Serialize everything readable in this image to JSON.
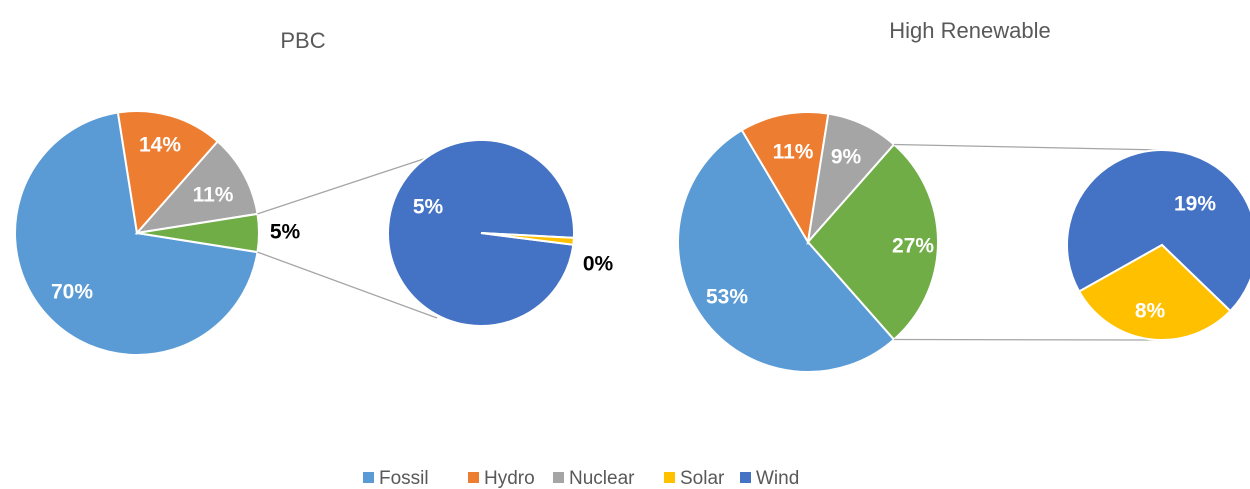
{
  "chart_data": [
    {
      "type": "pie-of-pie",
      "title": "PBC",
      "main": {
        "categories": [
          "Fossil",
          "Hydro",
          "Nuclear",
          null
        ],
        "values": [
          70,
          14,
          11,
          5
        ],
        "value_labels": [
          "70%",
          "14%",
          "11%",
          "5%"
        ],
        "aggregate_color": "#70ad47"
      },
      "secondary": {
        "categories": [
          "Wind",
          "Solar"
        ],
        "values": [
          5,
          0.06
        ],
        "value_labels": [
          "5%",
          "0%"
        ]
      }
    },
    {
      "type": "pie-of-pie",
      "title": "High Renewable",
      "main": {
        "categories": [
          "Fossil",
          "Hydro",
          "Nuclear",
          null
        ],
        "values": [
          53,
          11,
          9,
          27
        ],
        "value_labels": [
          "53%",
          "11%",
          "9%",
          "27%"
        ],
        "aggregate_color": "#70ad47"
      },
      "secondary": {
        "categories": [
          "Wind",
          "Solar"
        ],
        "values": [
          19,
          8
        ],
        "value_labels": [
          "19%",
          "8%"
        ]
      }
    }
  ],
  "legend": [
    {
      "name": "Fossil",
      "color": "#5b9bd5"
    },
    {
      "name": "Hydro",
      "color": "#ed7d31"
    },
    {
      "name": "Nuclear",
      "color": "#a5a5a5"
    },
    {
      "name": "Solar",
      "color": "#ffc000"
    },
    {
      "name": "Wind",
      "color": "#4472c4"
    }
  ]
}
